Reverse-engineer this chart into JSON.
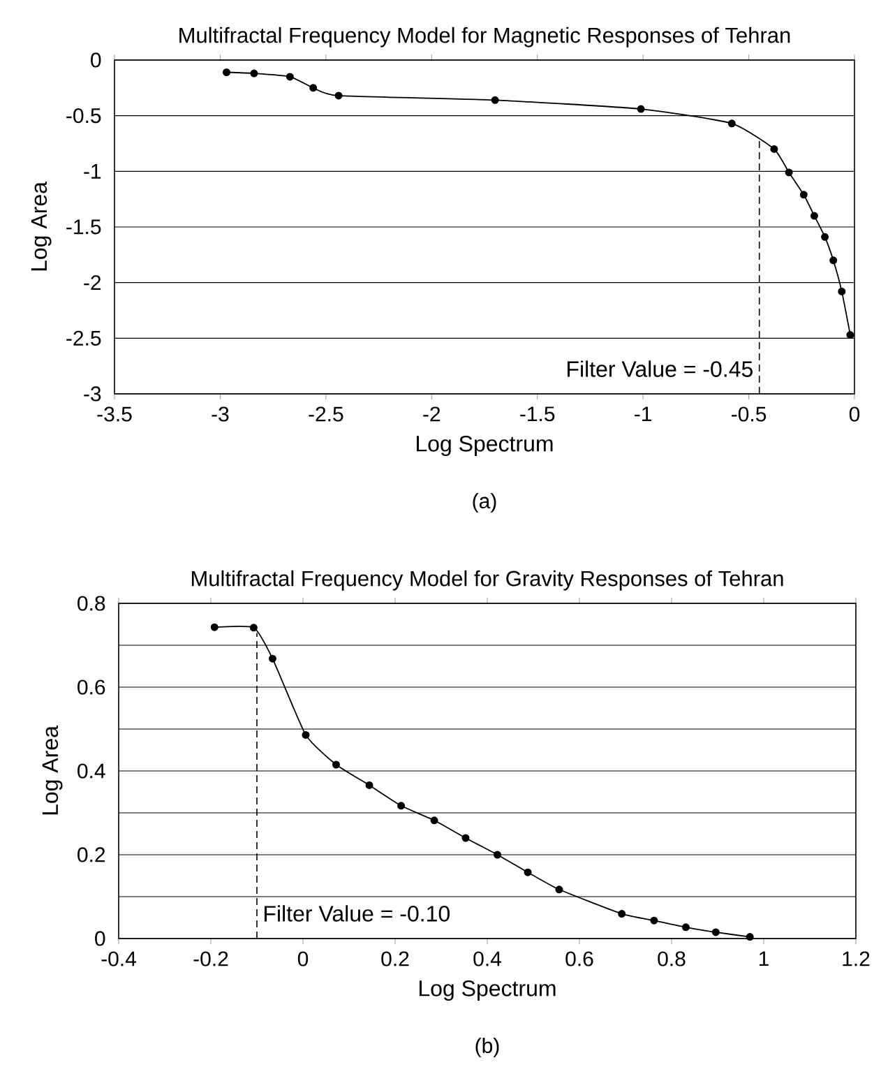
{
  "chart_data": [
    {
      "type": "line",
      "title": "Multifractal Frequency Model for Magnetic Responses of Tehran",
      "xlabel": "Log Spectrum",
      "ylabel": "Log Area",
      "annotations": [
        "(a)"
      ],
      "xlim": [
        -3.5,
        0
      ],
      "ylim": [
        -3,
        0
      ],
      "xticks": [
        -3.5,
        -3,
        -2.5,
        -2,
        -1.5,
        -1,
        -0.5,
        0
      ],
      "yticks": [
        -3,
        -2.5,
        -2,
        -1.5,
        -1,
        -0.5,
        0
      ],
      "grid": "y",
      "marker": "circle",
      "line_style": "solid",
      "x": [
        -2.97,
        -2.84,
        -2.67,
        -2.56,
        -2.44,
        -1.7,
        -1.01,
        -0.58,
        -0.38,
        -0.31,
        -0.24,
        -0.19,
        -0.14,
        -0.1,
        -0.06,
        -0.02
      ],
      "series": [
        {
          "color": "#000000",
          "values": [
            -0.11,
            -0.12,
            -0.15,
            -0.25,
            -0.32,
            -0.36,
            -0.44,
            -0.57,
            -0.8,
            -1.01,
            -1.21,
            -1.4,
            -1.59,
            -1.8,
            -2.08,
            -2.47
          ]
        }
      ],
      "ref_lines": [
        {
          "axis": "x",
          "value": -0.45,
          "label": "Filter Value = -0.45",
          "line_style": "dashed",
          "color": "#000000"
        }
      ]
    },
    {
      "type": "line",
      "title": "Multifractal Frequency Model for Gravity Responses of Tehran",
      "xlabel": "Log Spectrum",
      "ylabel": "Log Area",
      "annotations": [
        "(b)"
      ],
      "xlim": [
        -0.4,
        1.2
      ],
      "ylim": [
        0,
        0.8
      ],
      "xticks": [
        -0.4,
        -0.2,
        0,
        0.2,
        0.4,
        0.6,
        0.8,
        1,
        1.2
      ],
      "yticks": [
        0,
        {
          "value": 0.1,
          "label": null
        },
        0.2,
        {
          "value": 0.3,
          "label": null
        },
        0.4,
        {
          "value": 0.5,
          "label": null
        },
        0.6,
        {
          "value": 0.7,
          "label": null
        },
        0.8
      ],
      "grid": "y",
      "marker": "circle",
      "line_style": "solid",
      "x": [
        -0.192,
        -0.107,
        -0.066,
        0.006,
        0.072,
        0.144,
        0.213,
        0.285,
        0.353,
        0.422,
        0.488,
        0.556,
        0.692,
        0.762,
        0.831,
        0.896,
        0.97
      ],
      "series": [
        {
          "color": "#000000",
          "values": [
            0.743,
            0.742,
            0.668,
            0.486,
            0.415,
            0.366,
            0.317,
            0.282,
            0.24,
            0.2,
            0.158,
            0.117,
            0.059,
            0.043,
            0.027,
            0.015,
            0.004
          ]
        }
      ],
      "ref_lines": [
        {
          "axis": "x",
          "value": -0.1,
          "label": "Filter Value = -0.10",
          "line_style": "dashed",
          "color": "#000000"
        }
      ]
    }
  ]
}
